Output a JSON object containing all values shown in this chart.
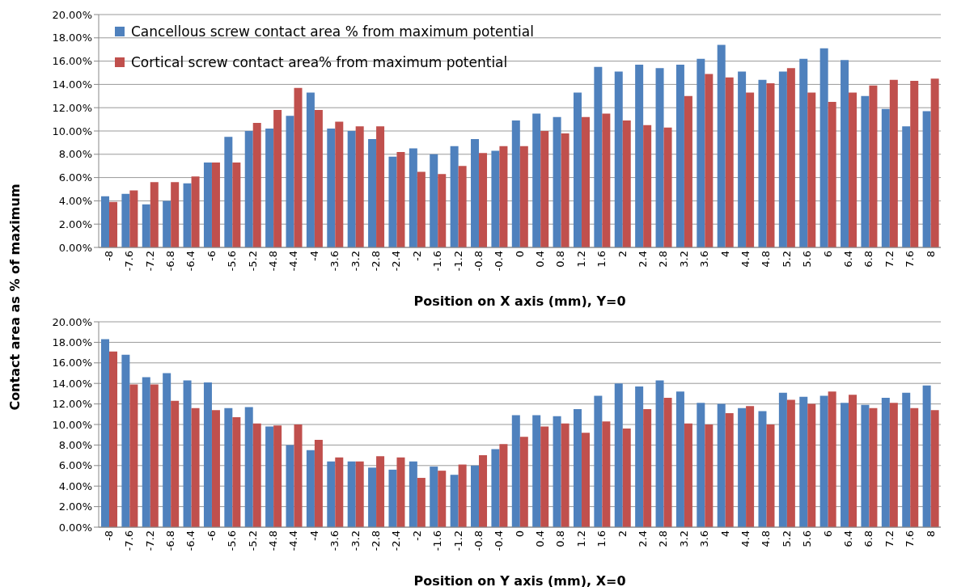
{
  "chart_data": [
    {
      "type": "bar",
      "ylabel": "Contact area as % of maximum",
      "xlabel": "Position on X axis (mm), Y=0",
      "categories": [
        "-8",
        "-7.6",
        "-7.2",
        "-6.8",
        "-6.4",
        "-6",
        "-5.6",
        "-5.2",
        "-4.8",
        "-4.4",
        "-4",
        "-3.6",
        "-3.2",
        "-2.8",
        "-2.4",
        "-2",
        "-1.6",
        "-1.2",
        "-0.8",
        "-0.4",
        "0",
        "0.4",
        "0.8",
        "1.2",
        "1.6",
        "2",
        "2.4",
        "2.8",
        "3.2",
        "3.6",
        "4",
        "4.4",
        "4.8",
        "5.2",
        "5.6",
        "6",
        "6.4",
        "6.8",
        "7.2",
        "7.6",
        "8"
      ],
      "series": [
        {
          "name": "Cancellous screw contact area % from maximum potential",
          "color": "#4f81bd",
          "values": [
            4.4,
            4.6,
            3.7,
            4.0,
            5.5,
            7.3,
            9.5,
            10.0,
            10.2,
            11.3,
            13.3,
            10.2,
            10.0,
            9.3,
            7.8,
            8.5,
            8.0,
            8.7,
            9.3,
            8.3,
            10.9,
            11.5,
            11.2,
            13.3,
            15.5,
            15.1,
            15.7,
            15.4,
            15.7,
            16.2,
            17.4,
            15.1,
            14.4,
            15.1,
            16.2,
            17.1,
            16.1,
            13.0,
            11.9,
            10.4,
            11.7
          ]
        },
        {
          "name": "Cortical screw contact area% from maximum potential",
          "color": "#c0504d",
          "values": [
            3.9,
            4.9,
            5.6,
            5.6,
            6.1,
            7.3,
            7.3,
            10.7,
            11.8,
            13.7,
            11.8,
            10.8,
            10.4,
            10.4,
            8.2,
            6.5,
            6.3,
            7.0,
            8.1,
            8.7,
            8.7,
            10.0,
            9.8,
            11.2,
            11.5,
            10.9,
            10.5,
            10.3,
            13.0,
            14.9,
            14.6,
            13.3,
            14.1,
            15.4,
            13.3,
            12.5,
            13.3,
            13.9,
            14.4,
            14.3,
            14.5
          ]
        }
      ],
      "ylim": [
        0,
        20
      ],
      "yticks": [
        {
          "value": 0,
          "label": "0.00%"
        },
        {
          "value": 2,
          "label": "2.00%"
        },
        {
          "value": 4,
          "label": "4.00%"
        },
        {
          "value": 6,
          "label": "6.00%"
        },
        {
          "value": 8,
          "label": "8.00%"
        },
        {
          "value": 10,
          "label": "10.00%"
        },
        {
          "value": 12,
          "label": "12.00%"
        },
        {
          "value": 14,
          "label": "14.00%"
        },
        {
          "value": 16,
          "label": "16.00%"
        },
        {
          "value": 18,
          "label": "18.00%"
        },
        {
          "value": 20,
          "label": "20.00%"
        }
      ],
      "grid": "y",
      "legend": "top left"
    },
    {
      "type": "bar",
      "xlabel": "Position on Y axis (mm), X=0",
      "categories": [
        "-8",
        "-7.6",
        "-7.2",
        "-6.8",
        "-6.4",
        "-6",
        "-5.6",
        "-5.2",
        "-4.8",
        "-4.4",
        "-4",
        "-3.6",
        "-3.2",
        "-2.8",
        "-2.4",
        "-2",
        "-1.6",
        "-1.2",
        "-0.8",
        "-0.4",
        "0",
        "0.4",
        "0.8",
        "1.2",
        "1.6",
        "2",
        "2.4",
        "2.8",
        "3.2",
        "3.6",
        "4",
        "4.4",
        "4.8",
        "5.2",
        "5.6",
        "6",
        "6.4",
        "6.8",
        "7.2",
        "7.6",
        "8"
      ],
      "series": [
        {
          "color": "#4f81bd",
          "values": [
            18.3,
            16.8,
            14.6,
            15.0,
            14.3,
            14.1,
            11.6,
            11.7,
            9.8,
            8.0,
            7.5,
            6.4,
            6.4,
            5.8,
            5.6,
            6.4,
            5.9,
            5.1,
            6.0,
            7.6,
            10.9,
            10.9,
            10.8,
            11.5,
            12.8,
            14.0,
            13.7,
            14.3,
            13.2,
            12.1,
            12.0,
            11.6,
            11.3,
            13.1,
            12.7,
            12.8,
            12.1,
            11.9,
            12.6,
            13.1,
            13.8
          ]
        },
        {
          "color": "#c0504d",
          "values": [
            17.1,
            13.9,
            13.9,
            12.3,
            11.6,
            11.4,
            10.7,
            10.1,
            9.9,
            10.0,
            8.5,
            6.8,
            6.4,
            6.9,
            6.8,
            4.8,
            5.5,
            6.1,
            7.0,
            8.1,
            8.8,
            9.8,
            10.1,
            9.2,
            10.3,
            9.6,
            11.5,
            12.6,
            10.1,
            10.0,
            11.1,
            11.8,
            10.0,
            12.4,
            12.0,
            13.2,
            12.9,
            11.6,
            12.1,
            11.6,
            11.4
          ]
        }
      ],
      "ylim": [
        0,
        20
      ],
      "yticks": [
        {
          "value": 0,
          "label": "0.00%"
        },
        {
          "value": 2,
          "label": "2.00%"
        },
        {
          "value": 4,
          "label": "4.00%"
        },
        {
          "value": 6,
          "label": "6.00%"
        },
        {
          "value": 8,
          "label": "8.00%"
        },
        {
          "value": 10,
          "label": "10.00%"
        },
        {
          "value": 12,
          "label": "12.00%"
        },
        {
          "value": 14,
          "label": "14.00%"
        },
        {
          "value": 16,
          "label": "16.00%"
        },
        {
          "value": 18,
          "label": "18.00%"
        },
        {
          "value": 20,
          "label": "20.00%"
        }
      ],
      "grid": "y"
    }
  ]
}
